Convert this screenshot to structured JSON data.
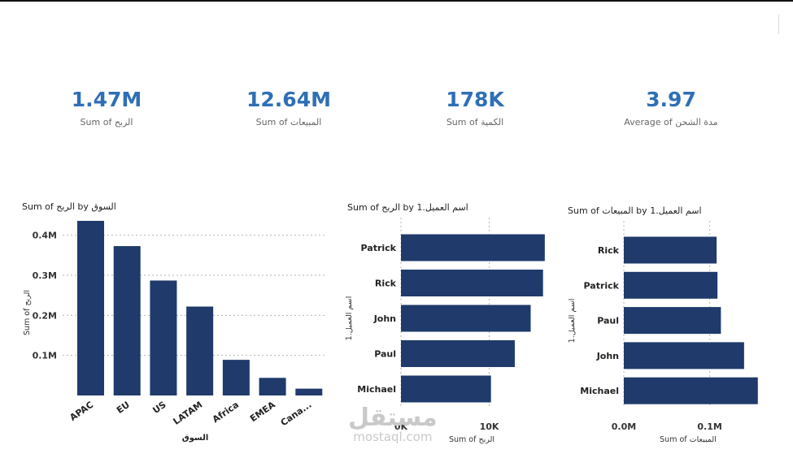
{
  "kpis": [
    {
      "value": "1.47M",
      "label": "Sum of الربح"
    },
    {
      "value": "12.64M",
      "label": "Sum of المبيعات"
    },
    {
      "value": "178K",
      "label": "Sum of الكمية"
    },
    {
      "value": "3.97",
      "label": "Average of مدة الشحن"
    }
  ],
  "watermark": {
    "arabic": "مستقل",
    "latin": "mostaql.com"
  },
  "chart_data": [
    {
      "type": "bar",
      "title": "Sum of الربح by السوق",
      "categories": [
        "APAC",
        "EU",
        "US",
        "LATAM",
        "Africa",
        "EMEA",
        "Cana..."
      ],
      "values": [
        436000,
        373000,
        287000,
        222000,
        89000,
        44000,
        17000
      ],
      "xlabel": "السوق",
      "ylabel": "Sum of الربح",
      "ylim": [
        0,
        0.44
      ],
      "yticks": [
        0.1,
        0.2,
        0.3,
        0.4
      ],
      "ytick_labels": [
        "0.1M",
        "0.2M",
        "0.3M",
        "0.4M"
      ]
    },
    {
      "type": "barh",
      "title": "Sum of الربح by اسم العميل.1",
      "categories": [
        "Patrick",
        "Rick",
        "John",
        "Paul",
        "Michael"
      ],
      "values": [
        16300,
        16100,
        14700,
        12900,
        10200
      ],
      "xlabel": "Sum of الربح",
      "ylabel": "اسم العميل.1",
      "xlim": [
        0,
        16500
      ],
      "xticks": [
        0,
        10000
      ],
      "xtick_labels": [
        "0K",
        "10K"
      ]
    },
    {
      "type": "barh",
      "title": "Sum of المبيعات by اسم العميل.1",
      "categories": [
        "Rick",
        "Patrick",
        "Paul",
        "John",
        "Michael"
      ],
      "values": [
        108000,
        109000,
        113000,
        140000,
        156000
      ],
      "xlabel": "Sum of المبيعات",
      "ylabel": "اسم العميل.1",
      "xlim": [
        0,
        160000
      ],
      "xticks": [
        0,
        100000
      ],
      "xtick_labels": [
        "0.0M",
        "0.1M"
      ]
    }
  ]
}
